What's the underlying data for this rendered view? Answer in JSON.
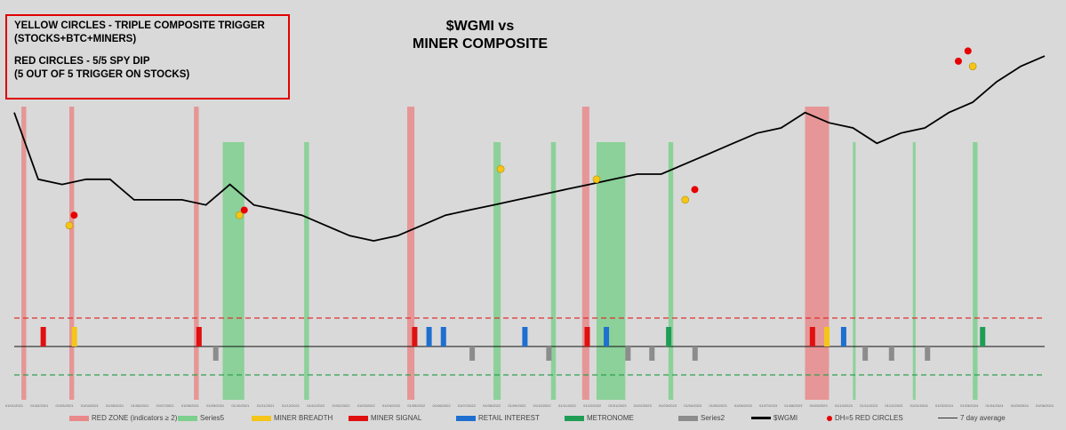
{
  "annotation": {
    "lines": [
      "YELLOW CIRCLES - TRIPLE COMPOSITE TRIGGER",
      "(STOCKS+BTC+MINERS)",
      "",
      "RED CIRCLES - 5/5 SPY DIP",
      "(5 OUT OF 5 TRIGGER ON STOCKS)"
    ]
  },
  "title": {
    "line1": "$WGMI vs",
    "line2": "MINER COMPOSITE"
  },
  "colors": {
    "background": "#d9d9d9",
    "red_zone": "#e8898a",
    "series5": "#7ccf8d",
    "miner_breadth": "#f5c518",
    "miner_signal": "#e01010",
    "retail_interest": "#1e6fd0",
    "metronome": "#1f9d55",
    "series2": "#8c8c8c",
    "wgmi": "#000000",
    "red_circle": "#e60000",
    "yellow_circle": "#f5c518",
    "upper_threshold": "#e03030",
    "lower_threshold": "#30a050"
  },
  "chart_data": {
    "type": "line",
    "x_ticks": [
      "01/01/2021",
      "01/02/2021",
      "01/03/2021",
      "01/04/2021",
      "01/05/2021",
      "01/06/2021",
      "01/07/2021",
      "01/08/2021",
      "01/09/2021",
      "01/10/2021",
      "01/11/2021",
      "01/12/2021",
      "01/01/2022",
      "01/02/2022",
      "01/03/2022",
      "01/04/2022",
      "01/05/2022",
      "01/06/2022",
      "01/07/2022",
      "01/08/2022",
      "01/09/2022",
      "01/10/2022",
      "01/11/2022",
      "01/12/2022",
      "01/01/2023",
      "01/02/2023",
      "01/03/2023",
      "01/04/2023",
      "01/05/2023",
      "01/06/2023",
      "01/07/2023",
      "01/08/2023",
      "01/09/2023",
      "01/10/2023",
      "01/11/2023",
      "01/12/2023",
      "01/01/2024",
      "01/02/2024",
      "01/03/2024",
      "01/04/2024",
      "01/05/2024",
      "01/06/2024"
    ],
    "wgmi_series": {
      "name": "$WGMI",
      "points": [
        [
          0,
          70
        ],
        [
          1,
          57
        ],
        [
          2,
          56
        ],
        [
          3,
          57
        ],
        [
          4,
          57
        ],
        [
          5,
          53
        ],
        [
          6,
          53
        ],
        [
          7,
          53
        ],
        [
          8,
          52
        ],
        [
          9,
          56
        ],
        [
          10,
          52
        ],
        [
          11,
          51
        ],
        [
          12,
          50
        ],
        [
          13,
          48
        ],
        [
          14,
          46
        ],
        [
          15,
          45
        ],
        [
          16,
          46
        ],
        [
          17,
          48
        ],
        [
          18,
          50
        ],
        [
          19,
          51
        ],
        [
          20,
          52
        ],
        [
          21,
          53
        ],
        [
          22,
          54
        ],
        [
          23,
          55
        ],
        [
          24,
          56
        ],
        [
          25,
          57
        ],
        [
          26,
          58
        ],
        [
          27,
          58
        ],
        [
          28,
          60
        ],
        [
          29,
          62
        ],
        [
          30,
          64
        ],
        [
          31,
          66
        ],
        [
          32,
          67
        ],
        [
          33,
          70
        ],
        [
          34,
          68
        ],
        [
          35,
          67
        ],
        [
          36,
          64
        ],
        [
          37,
          66
        ],
        [
          38,
          67
        ],
        [
          39,
          70
        ],
        [
          40,
          72
        ],
        [
          41,
          76
        ],
        [
          42,
          79
        ],
        [
          43,
          81
        ]
      ],
      "trend_note": ""
    },
    "red_zone_bands": [
      [
        0.3,
        0.5
      ],
      [
        2.3,
        2.5
      ],
      [
        7.5,
        7.7
      ],
      [
        16.4,
        16.7
      ],
      [
        23.7,
        24.0
      ],
      [
        33.0,
        34.0
      ]
    ],
    "series5_bands": [
      [
        8.7,
        9.6
      ],
      [
        12.1,
        12.3
      ],
      [
        20.0,
        20.3
      ],
      [
        22.4,
        22.6
      ],
      [
        24.3,
        25.5
      ],
      [
        27.3,
        27.5
      ],
      [
        35.0,
        35.1
      ],
      [
        37.5,
        37.6
      ],
      [
        40.0,
        40.2
      ]
    ],
    "yellow_circles": [
      [
        2.3,
        48
      ],
      [
        9.4,
        50
      ],
      [
        20.3,
        59
      ],
      [
        24.3,
        57
      ],
      [
        28.0,
        53
      ],
      [
        40.0,
        79
      ]
    ],
    "red_circles": [
      [
        2.5,
        50
      ],
      [
        9.6,
        51
      ],
      [
        28.4,
        55
      ],
      [
        39.4,
        80
      ],
      [
        39.8,
        82
      ]
    ],
    "composite": {
      "baseline_label": "",
      "upper_threshold": 2,
      "lower_threshold": -2
    },
    "legend": [
      {
        "key": "red_zone",
        "label": "RED ZONE (indicators ≥ 2)",
        "kind": "box"
      },
      {
        "key": "series5",
        "label": "Series5",
        "kind": "box"
      },
      {
        "key": "miner_breadth",
        "label": "MINER BREADTH",
        "kind": "box"
      },
      {
        "key": "miner_signal",
        "label": "MINER SIGNAL",
        "kind": "box"
      },
      {
        "key": "retail_interest",
        "label": "RETAIL INTEREST",
        "kind": "box"
      },
      {
        "key": "metronome",
        "label": "METRONOME",
        "kind": "box"
      },
      {
        "key": "series2",
        "label": "Series2",
        "kind": "box"
      },
      {
        "key": "wgmi",
        "label": "$WGMI",
        "kind": "line"
      },
      {
        "key": "red_circle",
        "label": "DH=5 RED CIRCLES",
        "kind": "dot"
      },
      {
        "key": "trend",
        "label": "7 day average",
        "kind": "thin-line"
      }
    ]
  }
}
